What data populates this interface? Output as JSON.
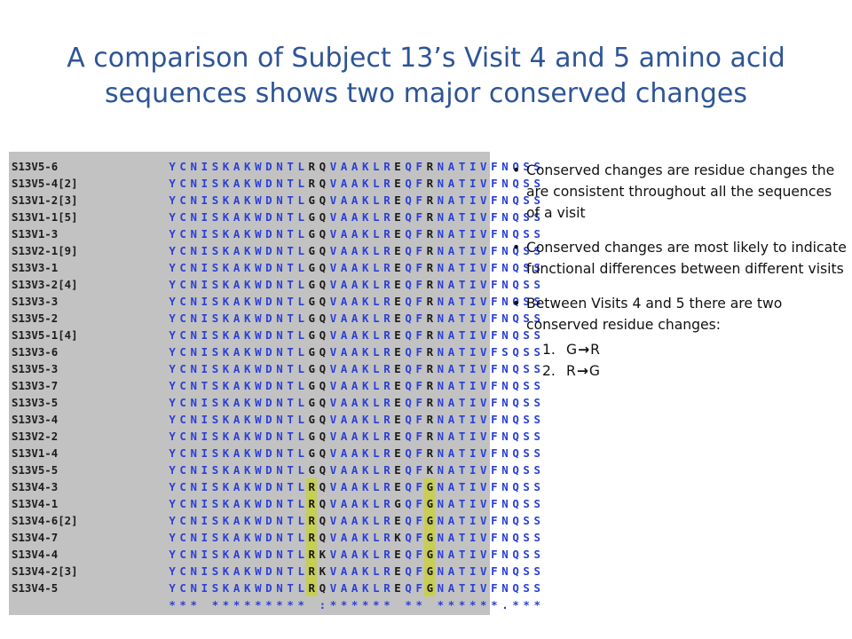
{
  "title": "A comparison of Subject 13’s Visit 4 and 5 amino acid sequences shows two major conserved changes",
  "alignment": {
    "rows": [
      {
        "name": "S13V5-6",
        "seq": "YCNISKAKWDNTLRQVAAKLREQFRNATIVFNQSS"
      },
      {
        "name": "S13V5-4[2]",
        "seq": "YCNISKAKWDNTLRQVAAKLREQFRNATIVFNQSS"
      },
      {
        "name": "S13V1-2[3]",
        "seq": "YCNISKAKWDNTLGQVAAKLREQFRNATIVFNQSS"
      },
      {
        "name": "S13V1-1[5]",
        "seq": "YCNISKAKWDNTLGQVAAKLREQFRNATIVFNQSS"
      },
      {
        "name": "S13V1-3",
        "seq": "YCNISKAKWDNTLGQVAAKLREQFRNATIVFNQSS"
      },
      {
        "name": "S13V2-1[9]",
        "seq": "YCNISKAKWDNTLGQVAAKLREQFRNATIVFNQSS"
      },
      {
        "name": "S13V3-1",
        "seq": "YCNISKAKWDNTLGQVAAKLREQFRNATIVFNQSS"
      },
      {
        "name": "S13V3-2[4]",
        "seq": "YCNISKAKWDNTLGQVAAKLREQFRNATIVFNQSS"
      },
      {
        "name": "S13V3-3",
        "seq": "YCNISKAKWDNTLGQVAAKLREQFRNATIVFNQSS"
      },
      {
        "name": "S13V5-2",
        "seq": "YCNISKAKWDNTLGQVAAKLREQFRNATIVFNQSS"
      },
      {
        "name": "S13V5-1[4]",
        "seq": "YCNISKAKWDNTLGQVAAKLREQFRNATIVFNQSS"
      },
      {
        "name": "S13V3-6",
        "seq": "YCNISKAKWDNTLGQVAAKLREQFRNATIVFSQSS"
      },
      {
        "name": "S13V5-3",
        "seq": "YCNISKAKWDNTLGQVAAKLREQFRNATIVFNQSS"
      },
      {
        "name": "S13V3-7",
        "seq": "YCNTSKAKWDNTLGQVAAKLREQFRNATIVFNQSS"
      },
      {
        "name": "S13V3-5",
        "seq": "YCNISKAKWDNTLGQVAAKLREQFRNATIVFNQSS"
      },
      {
        "name": "S13V3-4",
        "seq": "YCNISKAKWDNTLGQVAAKLREQFRNATIVFNQSS"
      },
      {
        "name": "S13V2-2",
        "seq": "YCNISKAKWDNTLGQVAAKLREQFRNATIVFNQSS"
      },
      {
        "name": "S13V1-4",
        "seq": "YCNISKAKWDNTLGQVAAKLREQFRNATIVFNQSS"
      },
      {
        "name": "S13V5-5",
        "seq": "YCNISKAKWDNTLGQVAAKLREQFKNATIVFNQSS"
      },
      {
        "name": "S13V4-3",
        "seq": "YCNISKAKWDNTLRQVAAKLREQFGNATIVFNQSS"
      },
      {
        "name": "S13V4-1",
        "seq": "YCNISKAKWDNTLRQVAAKLRGQFGNATIVFNQSS"
      },
      {
        "name": "S13V4-6[2]",
        "seq": "YCNISKAKWDNTLRQVAAKLREQFGNATIVFNQSS"
      },
      {
        "name": "S13V4-7",
        "seq": "YCNISKAKWDNTLRQVAAKLRKQFGNATIVFNQSS"
      },
      {
        "name": "S13V4-4",
        "seq": "YCNISKAKWDNTLRKVAAKLREQFGNATIVFNQSS"
      },
      {
        "name": "S13V4-2[3]",
        "seq": "YCNISKAKWDNTLRKVAAKLREQFGNATIVFNQSS"
      },
      {
        "name": "S13V4-5",
        "seq": "YCNISKAKWDNTLRQVAAKLREQFGNATIVFNQSS"
      }
    ],
    "consensus": "*** ********* :****** ** ******.***",
    "highlight_from_row": 19,
    "highlight_columns": [
      13,
      24
    ],
    "dark_columns": [
      13,
      14,
      21,
      24
    ]
  },
  "notes": {
    "bullets": [
      "Conserved changes are residue changes the are consistent throughout all the sequences of a visit",
      "Conserved changes are most likely to indicate functional differences between different visits",
      "Between Visits 4 and 5 there are two conserved residue changes:"
    ],
    "sub_items": [
      {
        "num": "1.",
        "from": "G",
        "to": "R"
      },
      {
        "num": "2.",
        "from": "R",
        "to": "G"
      }
    ],
    "bullet_glyph": "•",
    "arrow_glyph": "→"
  }
}
